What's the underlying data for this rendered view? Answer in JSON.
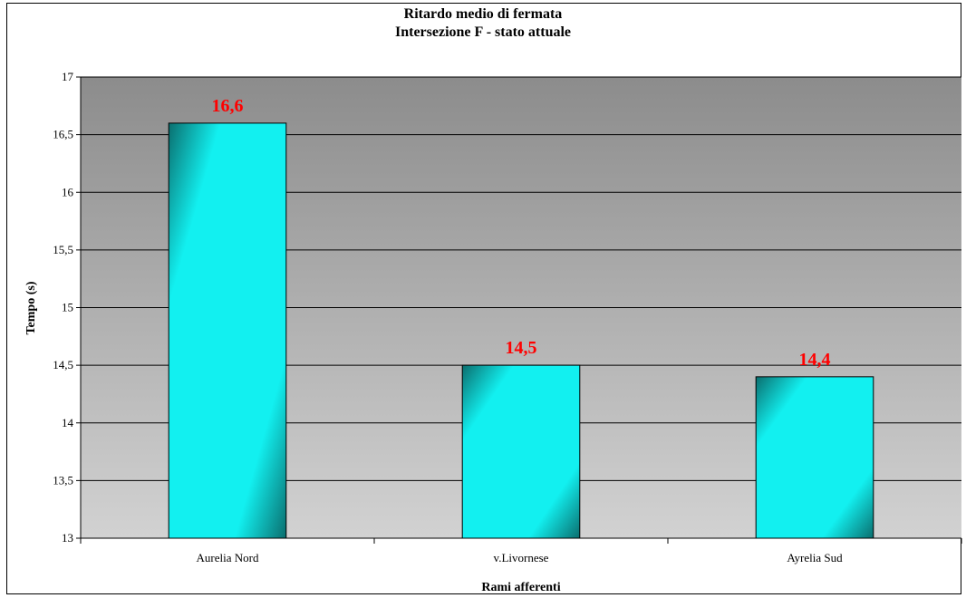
{
  "chart_data": {
    "type": "bar",
    "title": "Ritardo medio di fermata",
    "subtitle": "Intersezione F - stato attuale",
    "xlabel": "Rami afferenti",
    "ylabel": "Tempo (s)",
    "categories": [
      "Aurelia Nord",
      "v.Livornese",
      "Ayrelia Sud"
    ],
    "values": [
      16.6,
      14.5,
      14.4
    ],
    "data_labels": [
      "16,6",
      "14,5",
      "14,4"
    ],
    "ylim": [
      13,
      17
    ],
    "y_ticks": [
      13,
      13.5,
      14,
      14.5,
      15,
      15.5,
      16,
      16.5,
      17
    ],
    "y_tick_labels": [
      "13",
      "13,5",
      "14",
      "14,5",
      "15",
      "15,5",
      "16",
      "16,5",
      "17"
    ],
    "grid": true,
    "legend": "none",
    "colors": {
      "bar_light": "#12f0f0",
      "bar_dark": "#0a6e6e",
      "plot_bg_top": "#8c8c8c",
      "plot_bg_bottom": "#d2d2d2",
      "gridline": "#000000",
      "data_label": "#ff0000"
    }
  }
}
